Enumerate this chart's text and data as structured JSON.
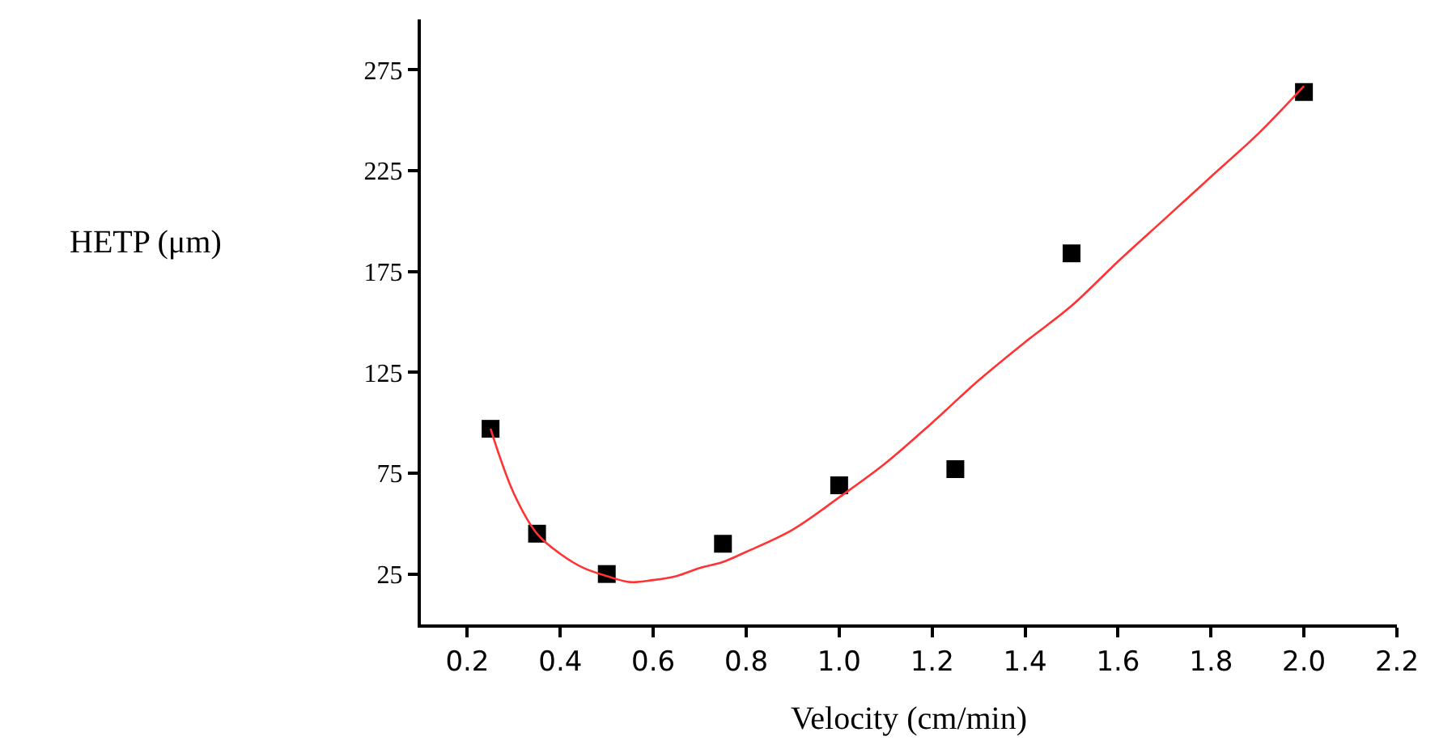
{
  "chart_data": {
    "type": "scatter",
    "xlabel": "Velocity (cm/min)",
    "ylabel": "HETP (μm)",
    "series": [
      {
        "color": "#000000",
        "marker": "square",
        "x": [
          0.25,
          0.35,
          0.5,
          0.75,
          1.0,
          1.25,
          1.5,
          2.0
        ],
        "values": [
          97,
          45,
          25,
          40,
          69,
          77,
          184,
          264
        ]
      },
      {
        "type": "line",
        "color": "#ff3333",
        "marker": "none",
        "line_style": "solid",
        "x": [
          0.25,
          0.3,
          0.35,
          0.4,
          0.45,
          0.5,
          0.55,
          0.6,
          0.65,
          0.7,
          0.75,
          0.8,
          0.9,
          1.0,
          1.1,
          1.2,
          1.3,
          1.4,
          1.5,
          1.6,
          1.7,
          1.8,
          1.9,
          2.0
        ],
        "values": [
          97,
          65,
          45,
          35,
          28,
          24,
          21,
          22,
          24,
          28,
          31,
          36,
          47,
          63,
          80,
          100,
          121,
          140,
          158,
          180,
          201,
          222,
          243,
          267
        ]
      }
    ],
    "xlim": [
      0.1,
      2.2
    ],
    "xticks": [
      0.2,
      0.4,
      0.6,
      0.8,
      {
        "value": 1,
        "label": "1.0"
      },
      1.2,
      1.4,
      1.6,
      1.8,
      {
        "value": 2,
        "label": "2.0"
      },
      2.2
    ],
    "ylim": [
      0,
      300
    ],
    "yticks": [
      25,
      75,
      125,
      175,
      225,
      275
    ]
  }
}
